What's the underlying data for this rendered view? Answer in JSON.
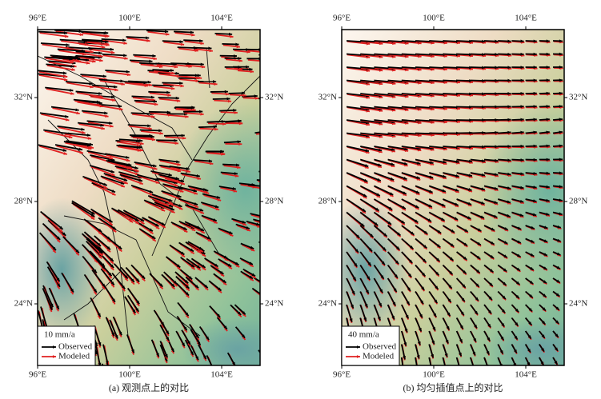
{
  "panels": [
    {
      "caption": "(a) 观测点上的对比",
      "lon_ticks": [
        "96°E",
        "100°E",
        "104°E"
      ],
      "lat_ticks": [
        "32°N",
        "28°N",
        "24°N"
      ],
      "legend": {
        "scale": "10 mm/a",
        "observed": "Observed",
        "modeled": "Modeled"
      }
    },
    {
      "caption": "(b) 均匀插值点上的对比",
      "lon_ticks": [
        "96°E",
        "100°E",
        "104°E"
      ],
      "lat_ticks": [
        "32°N",
        "28°N",
        "24°N"
      ],
      "legend": {
        "scale": "40 mm/a",
        "observed": "Observed",
        "modeled": "Modeled"
      }
    }
  ]
}
